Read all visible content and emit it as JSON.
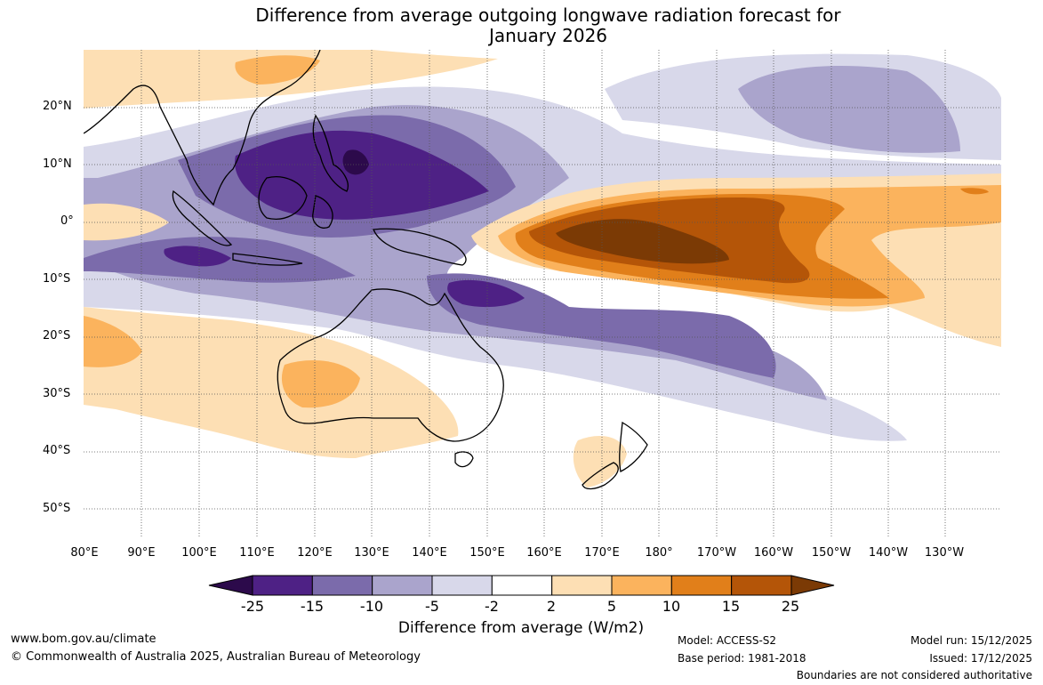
{
  "title": {
    "line1": "Difference from average outgoing longwave radiation forecast for",
    "line2": "January 2026"
  },
  "map": {
    "lat_labels": [
      "20°N",
      "10°N",
      "0°",
      "10°S",
      "20°S",
      "30°S",
      "40°S",
      "50°S"
    ],
    "lon_labels": [
      "80°E",
      "90°E",
      "100°E",
      "110°E",
      "120°E",
      "130°E",
      "140°E",
      "150°E",
      "160°E",
      "170°E",
      "180°",
      "170°W",
      "160°W",
      "150°W",
      "140°W",
      "130°W"
    ]
  },
  "colorbar": {
    "ticks": [
      "-25",
      "-15",
      "-10",
      "-5",
      "-2",
      "2",
      "5",
      "10",
      "15",
      "25"
    ],
    "colors": [
      "#4e2185",
      "#7b6bab",
      "#aaa4cc",
      "#d8d8ea",
      "#ffffff",
      "#fddfb4",
      "#fbb35d",
      "#e17f1a",
      "#b45508"
    ],
    "extend_low_color": "#2c0a4b",
    "extend_high_color": "#7b3a05",
    "label": "Difference from average (W/m2)"
  },
  "footer": {
    "website": "www.bom.gov.au/climate",
    "copyright": "© Commonwealth of Australia 2025, Australian Bureau of Meteorology",
    "model": "Model: ACCESS-S2",
    "base_period": "Base period: 1981-2018",
    "model_run": "Model run: 15/12/2025",
    "issued": "Issued: 17/12/2025",
    "disclaimer": "Boundaries are not considered authoritative"
  }
}
